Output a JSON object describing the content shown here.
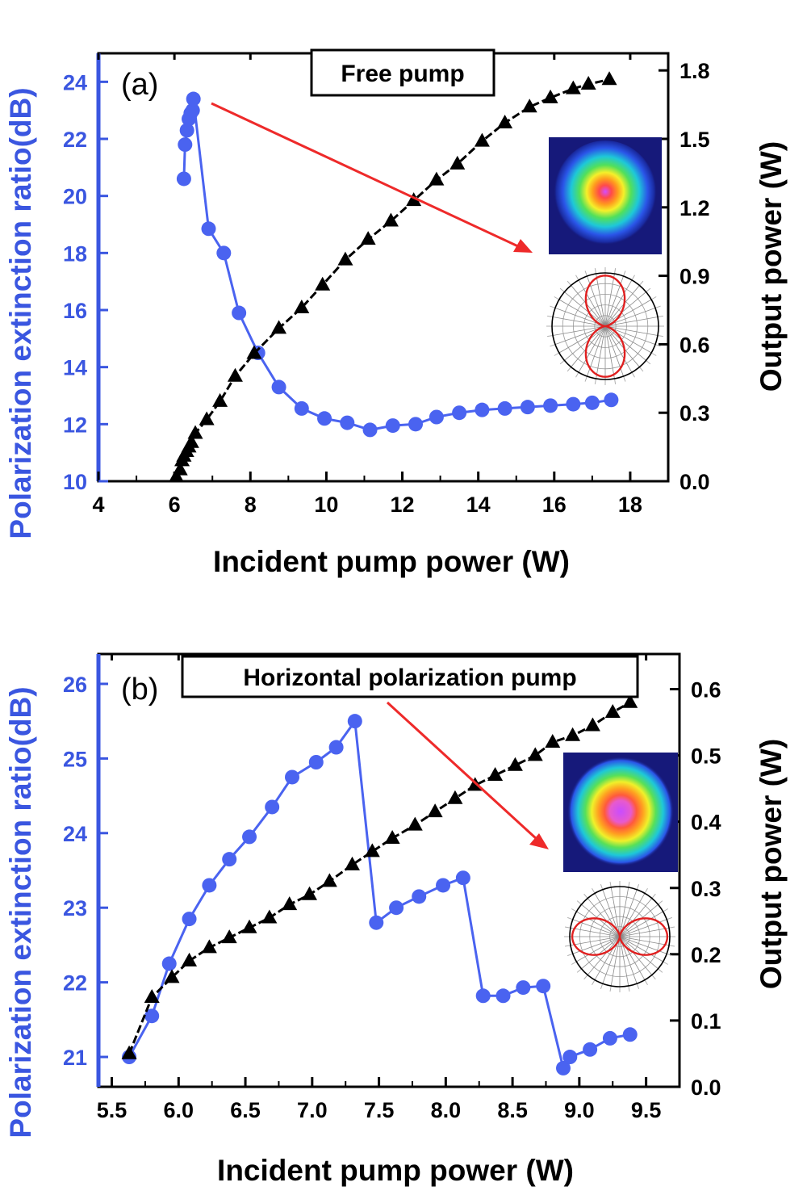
{
  "colors": {
    "left_axis": "#3a56e0",
    "right_axis": "#000000",
    "per_series": "#4a63f0",
    "power_series": "#000000",
    "arrow": "#ee2a2a",
    "polar_lobe": "#e02020"
  },
  "chart_data": [
    {
      "type": "line",
      "panel_label": "(a)",
      "title": "Free pump",
      "xlabel": "Incident pump power (W)",
      "ylabel": "Polarization extinction ratio(dB)",
      "y2label": "Output power (W)",
      "xlim": [
        4,
        19
      ],
      "ylim": [
        10,
        25
      ],
      "y2lim": [
        0,
        1.875
      ],
      "xticks": [
        "4",
        "6",
        "8",
        "10",
        "12",
        "14",
        "16",
        "18"
      ],
      "xtick_values": [
        4,
        6,
        8,
        10,
        12,
        14,
        16,
        18
      ],
      "yticks": [
        "10",
        "12",
        "14",
        "16",
        "18",
        "20",
        "22",
        "24"
      ],
      "ytick_values": [
        10,
        12,
        14,
        16,
        18,
        20,
        22,
        24
      ],
      "y2ticks": [
        "0.0",
        "0.3",
        "0.6",
        "0.9",
        "1.2",
        "1.5",
        "1.8"
      ],
      "y2tick_values": [
        0,
        0.3,
        0.6,
        0.9,
        1.2,
        1.5,
        1.8
      ],
      "grid": false,
      "insets": [
        "beam-profile",
        "polar-plot-vertical"
      ],
      "series": [
        {
          "marker": "circle",
          "axis": "left",
          "color": "#4a63f0",
          "x": [
            6.25,
            6.28,
            6.33,
            6.38,
            6.43,
            6.48,
            6.5,
            6.9,
            7.3,
            7.7,
            8.2,
            8.75,
            9.35,
            9.95,
            10.55,
            11.15,
            11.75,
            12.35,
            12.9,
            13.5,
            14.1,
            14.7,
            15.3,
            15.9,
            16.5,
            17.0,
            17.5
          ],
          "y": [
            20.6,
            21.8,
            22.3,
            22.7,
            22.9,
            23.0,
            23.4,
            18.85,
            18.0,
            15.9,
            14.5,
            13.3,
            12.55,
            12.2,
            12.05,
            11.8,
            11.95,
            12.0,
            12.25,
            12.4,
            12.5,
            12.55,
            12.6,
            12.65,
            12.7,
            12.75,
            12.85
          ]
        },
        {
          "marker": "triangle",
          "axis": "right",
          "color": "#000000",
          "x": [
            6.05,
            6.15,
            6.2,
            6.25,
            6.32,
            6.38,
            6.45,
            6.55,
            6.85,
            7.2,
            7.6,
            8.1,
            8.75,
            9.35,
            9.9,
            10.5,
            11.1,
            11.7,
            12.3,
            12.9,
            13.45,
            14.1,
            14.7,
            15.35,
            15.9,
            16.5,
            16.9,
            17.45
          ],
          "y": [
            0.02,
            0.05,
            0.09,
            0.11,
            0.13,
            0.15,
            0.17,
            0.21,
            0.27,
            0.35,
            0.46,
            0.56,
            0.67,
            0.76,
            0.86,
            0.97,
            1.06,
            1.14,
            1.23,
            1.32,
            1.39,
            1.49,
            1.57,
            1.64,
            1.68,
            1.72,
            1.74,
            1.76
          ]
        }
      ]
    },
    {
      "type": "line",
      "panel_label": "(b)",
      "title": "Horizontal polarization pump",
      "xlabel": "Incident pump power (W)",
      "ylabel": "Polarization extinction ratio(dB)",
      "y2label": "Output power (W)",
      "xlim": [
        5.4,
        9.75
      ],
      "ylim": [
        20.6,
        26.4
      ],
      "y2lim": [
        0,
        0.653
      ],
      "xticks": [
        "5.5",
        "6.0",
        "6.5",
        "7.0",
        "7.5",
        "8.0",
        "8.5",
        "9.0",
        "9.5"
      ],
      "xtick_values": [
        5.5,
        6.0,
        6.5,
        7.0,
        7.5,
        8.0,
        8.5,
        9.0,
        9.5
      ],
      "yticks": [
        "21",
        "22",
        "23",
        "24",
        "25",
        "26"
      ],
      "ytick_values": [
        21,
        22,
        23,
        24,
        25,
        26
      ],
      "y2ticks": [
        "0.0",
        "0.1",
        "0.2",
        "0.3",
        "0.4",
        "0.5",
        "0.6"
      ],
      "y2tick_values": [
        0,
        0.1,
        0.2,
        0.3,
        0.4,
        0.5,
        0.6
      ],
      "grid": false,
      "insets": [
        "beam-profile",
        "polar-plot-horizontal"
      ],
      "series": [
        {
          "marker": "circle",
          "axis": "left",
          "color": "#4a63f0",
          "x": [
            5.63,
            5.8,
            5.93,
            6.08,
            6.23,
            6.38,
            6.53,
            6.7,
            6.85,
            7.03,
            7.18,
            7.32,
            7.48,
            7.63,
            7.8,
            7.98,
            8.13,
            8.28,
            8.43,
            8.58,
            8.73,
            8.88,
            8.93,
            9.08,
            9.23,
            9.38
          ],
          "y": [
            21.0,
            21.55,
            22.25,
            22.85,
            23.3,
            23.65,
            23.95,
            24.35,
            24.75,
            24.95,
            25.15,
            25.5,
            22.8,
            23.0,
            23.15,
            23.3,
            23.4,
            21.82,
            21.82,
            21.93,
            21.95,
            20.85,
            21.0,
            21.1,
            21.25,
            21.3
          ]
        },
        {
          "marker": "triangle",
          "axis": "right",
          "color": "#000000",
          "x": [
            5.63,
            5.8,
            5.95,
            6.08,
            6.23,
            6.38,
            6.53,
            6.68,
            6.83,
            6.98,
            7.13,
            7.3,
            7.45,
            7.6,
            7.77,
            7.92,
            8.07,
            8.22,
            8.37,
            8.52,
            8.67,
            8.8,
            8.95,
            9.1,
            9.25,
            9.38
          ],
          "y": [
            0.05,
            0.135,
            0.165,
            0.19,
            0.21,
            0.225,
            0.24,
            0.255,
            0.275,
            0.29,
            0.31,
            0.335,
            0.355,
            0.375,
            0.395,
            0.415,
            0.435,
            0.455,
            0.47,
            0.485,
            0.5,
            0.52,
            0.53,
            0.545,
            0.565,
            0.58
          ]
        }
      ]
    }
  ]
}
